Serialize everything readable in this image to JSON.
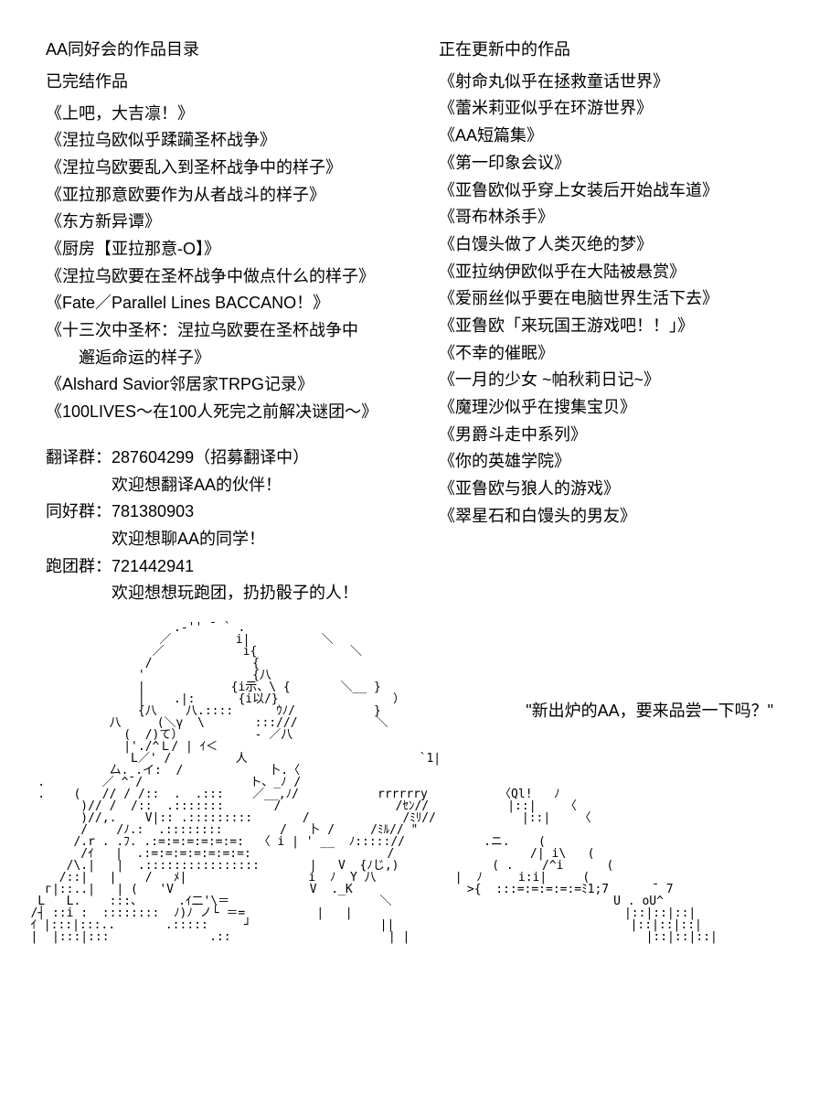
{
  "left": {
    "title": "AA同好会的作品目录",
    "subtitle": "已完结作品",
    "works": [
      "《上吧，大吉凛！》",
      "《涅拉乌欧似乎蹂躏圣杯战争》",
      "《涅拉乌欧要乱入到圣杯战争中的样子》",
      "《亚拉那意欧要作为从者战斗的样子》",
      "《东方新异谭》",
      "《厨房【亚拉那意-O】》",
      "《涅拉乌欧要在圣杯战争中做点什么的样子》",
      "《Fate／Parallel Lines BACCANO！》"
    ],
    "work_multi_1a": "《十三次中圣杯：涅拉乌欧要在圣杯战争中",
    "work_multi_1b": "邂逅命运的样子》",
    "works2": [
      "《Alshard Savior邻居家TRPG记录》",
      "《100LIVES～在100人死完之前解决谜团～》"
    ],
    "groups": {
      "g1_label": "翻译群：287604299（招募翻译中）",
      "g1_desc": "欢迎想翻译AA的伙伴！",
      "g2_label": "同好群：781380903",
      "g2_desc": "欢迎想聊AA的同学！",
      "g3_label": "跑团群：721442941",
      "g3_desc": "欢迎想想玩跑团，扔扔骰子的人！"
    }
  },
  "right": {
    "title": "正在更新中的作品",
    "works": [
      "《射命丸似乎在拯救童话世界》",
      "《蕾米莉亚似乎在环游世界》",
      "《AA短篇集》",
      "《第一印象会议》",
      "《亚鲁欧似乎穿上女装后开始战车道》",
      "《哥布林杀手》",
      "《白馒头做了人类灭绝的梦》",
      "《亚拉纳伊欧似乎在大陆被悬赏》",
      "《爱丽丝似乎要在电脑世界生活下去》",
      "《亚鲁欧「来玩国王游戏吧！！」》",
      "《不幸的催眠》",
      "《一月的少女 ~帕秋莉日记~》",
      "《魔理沙似乎在搜集宝贝》",
      "《男爵斗走中系列》",
      "《你的英雄学院》",
      "《亚鲁欧与狼人的游戏》",
      "《翠星石和白馒头的男友》"
    ]
  },
  "quote": "\"新出炉的AA，要来品尝一下吗？\"",
  "ascii_art": "                       .-'' ¯ ` .\n                     ／         i|          ＼\n                    ／           i{             ＼\n                   /              {\n                  '               {八\n                  |            {i示、\\ {       ＼__ }\n                  |    .|:      {i以/}                ）\n                  {八    八.::::      ｳﾉ/           }\n              八     (＼γ  \\       :::///           ＼\n                (  /)て）          - ／八\n                |'./^Ｌ/ | ｲ＜\n                 L／' /         人                        `1|\n              厶. .イ:  /            卜.〈\n    .        ／ ^¯/               ト、_ﾉ /\n    .    (   // / /::  .  .:::    ／__,ﾉ/           rrrrrry          〈Ql!   ﾉ\n          )// /  /::  .:::::::       /                /ｾﾝ//           |::|    〈\n          )//,.    V|:: .:::::::::       /             /ﾐﾘ//            |::|    〈\n          /    /ﾉ.:  .::::::::        /   卜 /     /ﾐﾙ// \"\n         /.r . .ﾌ. .:=:=:=:=:=:=:  〈 i | ' __  ﾉ::::://           .ニ.    (\n          /ｲ   |  .:=:=:=:=:=:=:=:                   /                   /| i\\   (\n        /\\.|   |  .::::::::::::::::       |   V  {ﾉじ,)             ( .    /^i      (\n       /::|   |    /   ﾒ|                 i  ﾉ  Y 八           |  ﾉ     i:i|     (\n     г|::..|   | (   'V                   V  ._K                >{  :::=:=:=:=:=ﾐ1;7      ¯ 7\n    L   L.    :::、     .ｲ二'\\＝                     ＼                               U . oU^\n   /┤ ::i :  ::::::::  ﾉ)ﾉ ノ└ ＝=          |   |                                      |::|::|::|\n   ｲ |:::|:::..       .:::::     ┘                  ||                                 |::|::|::|\n   |  |:::|:::              .::                      | |                                 |::|::|::|"
}
